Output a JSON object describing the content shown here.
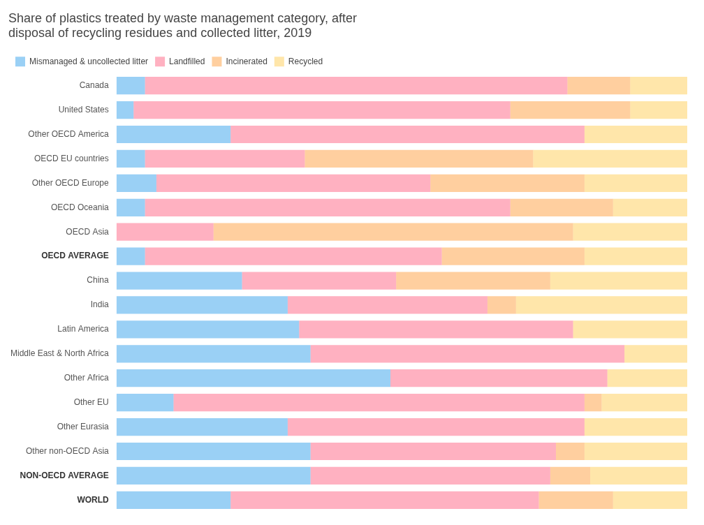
{
  "chart_data": {
    "type": "bar",
    "orientation": "horizontal",
    "stacked": true,
    "title": "Share of plastics treated by waste management category, after\ndisposal of recycling residues and collected litter, 2019",
    "categories": [
      "Canada",
      "United States",
      "Other OECD America",
      "OECD EU countries",
      "Other OECD Europe",
      "OECD Oceania",
      "OECD Asia",
      "OECD AVERAGE",
      "China",
      "India",
      "Latin America",
      "Middle East & North Africa",
      "Other Africa",
      "Other EU",
      "Other Eurasia",
      "Other non-OECD Asia",
      "NON-OECD AVERAGE",
      "WORLD"
    ],
    "series": [
      {
        "name": "Mismanaged & uncollected litter",
        "values": [
          5,
          3,
          20,
          5,
          7,
          5,
          0,
          5,
          22,
          30,
          32,
          34,
          48,
          10,
          30,
          34,
          34,
          20
        ]
      },
      {
        "name": "Landfilled",
        "values": [
          74,
          66,
          62,
          28,
          48,
          64,
          17,
          52,
          27,
          35,
          48,
          55,
          38,
          72,
          52,
          43,
          42,
          54
        ]
      },
      {
        "name": "Incinerated",
        "values": [
          11,
          21,
          0,
          40,
          27,
          18,
          63,
          25,
          27,
          5,
          0,
          0,
          0,
          3,
          0,
          5,
          7,
          13
        ]
      },
      {
        "name": "Recycled",
        "values": [
          10,
          10,
          18,
          27,
          18,
          13,
          20,
          18,
          24,
          30,
          20,
          11,
          14,
          15,
          18,
          18,
          17,
          13
        ]
      }
    ],
    "xlim": [
      0,
      100
    ],
    "tick_labels": "y",
    "grid": false,
    "legend": "top"
  }
}
